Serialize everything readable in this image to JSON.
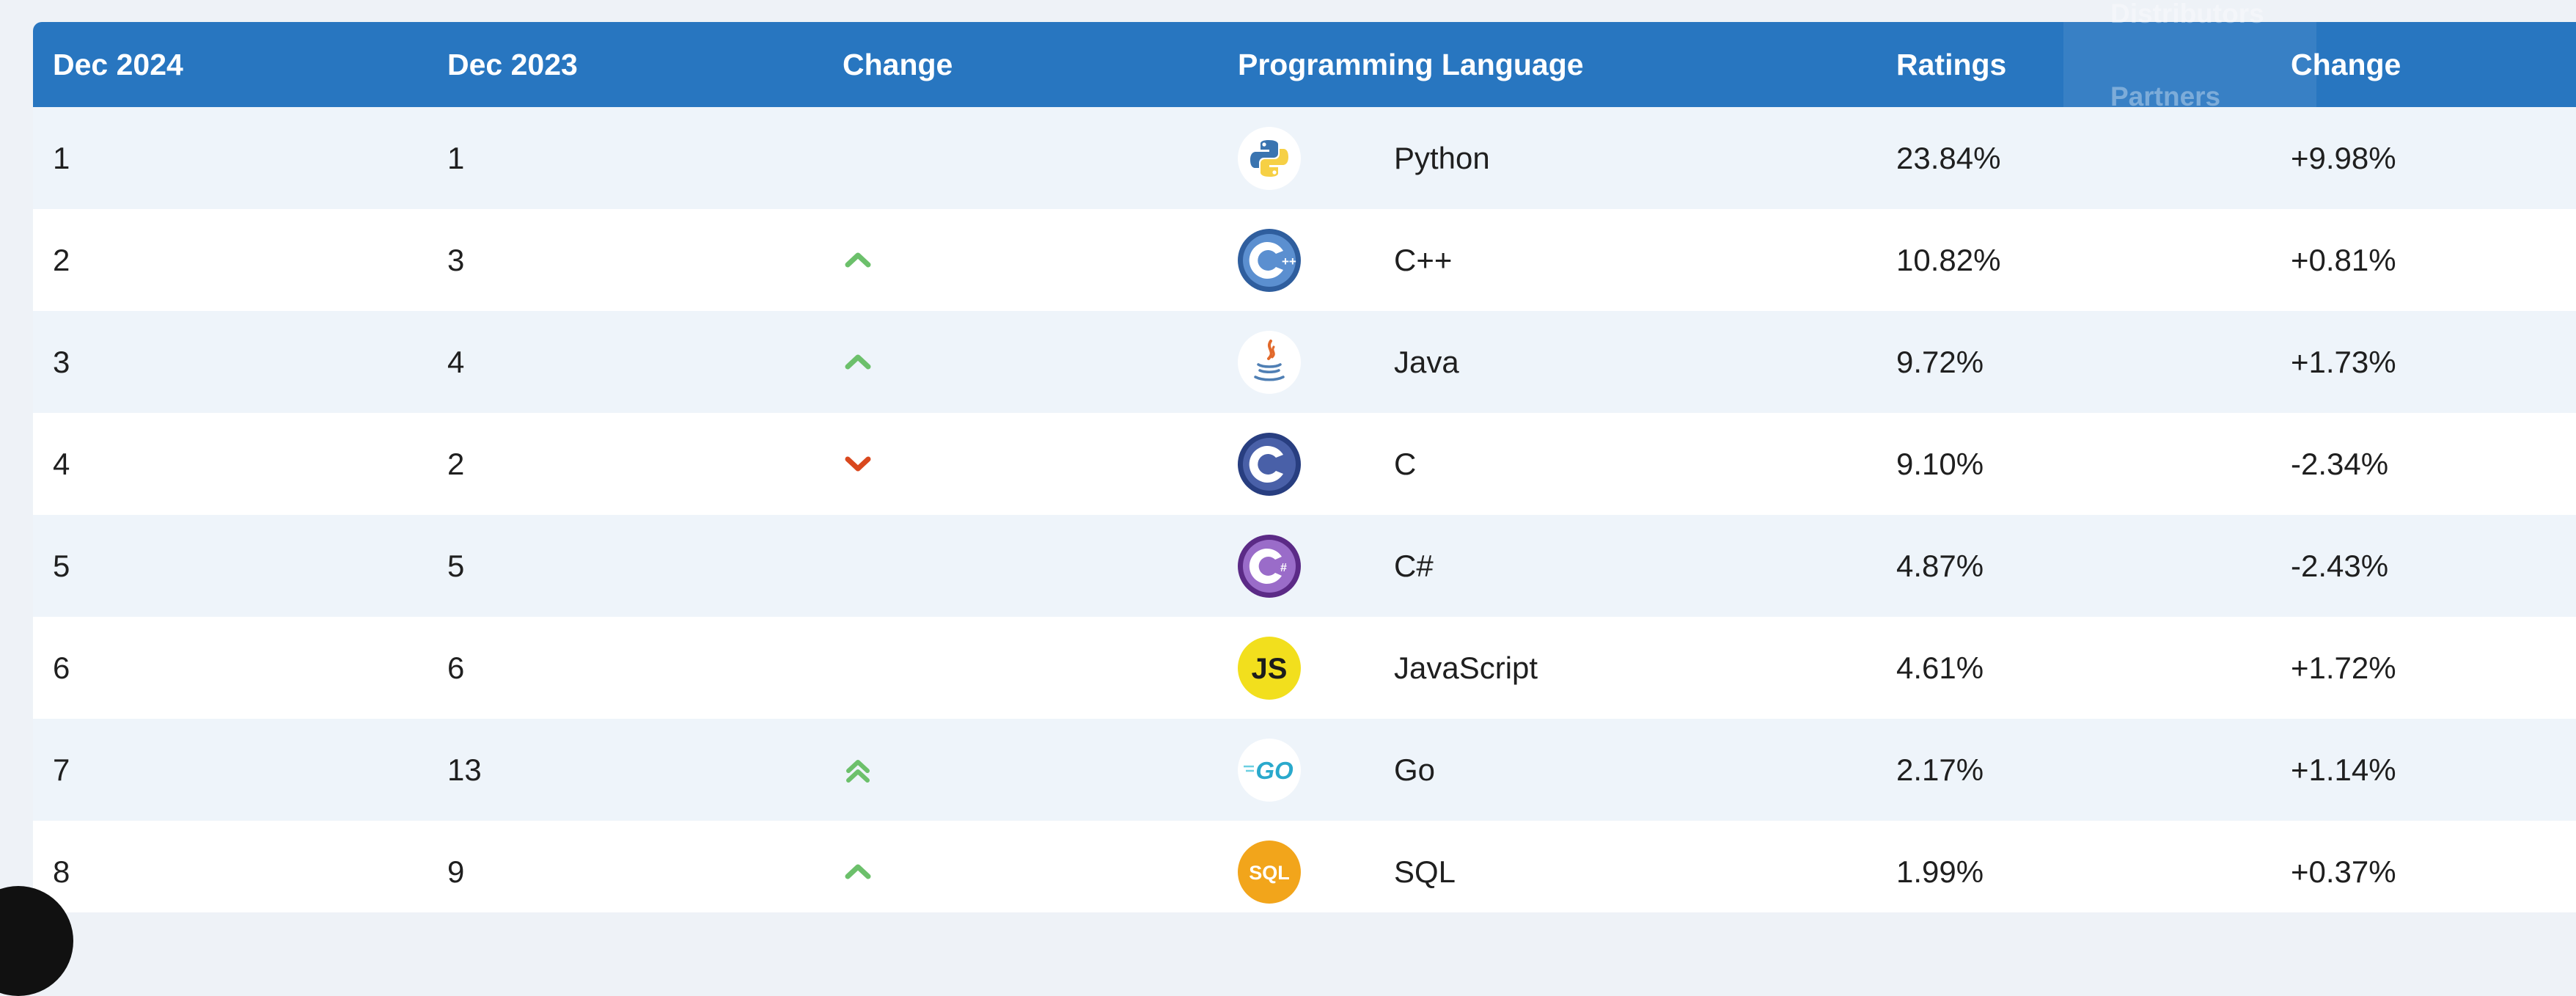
{
  "overlay_menu": {
    "items": [
      "Distributors",
      "Partners"
    ]
  },
  "table": {
    "headers": {
      "rank_now": "Dec 2024",
      "rank_prev": "Dec 2023",
      "change": "Change",
      "language": "Programming Language",
      "ratings": "Ratings",
      "change_pct": "Change"
    },
    "rows": [
      {
        "now": "1",
        "prev": "1",
        "trend": "none",
        "logo": "python-logo-icon",
        "language": "Python",
        "ratings": "23.84%",
        "change": "+9.98%"
      },
      {
        "now": "2",
        "prev": "3",
        "trend": "up",
        "logo": "cpp-logo-icon",
        "language": "C++",
        "ratings": "10.82%",
        "change": "+0.81%"
      },
      {
        "now": "3",
        "prev": "4",
        "trend": "up",
        "logo": "java-logo-icon",
        "language": "Java",
        "ratings": "9.72%",
        "change": "+1.73%"
      },
      {
        "now": "4",
        "prev": "2",
        "trend": "down",
        "logo": "c-logo-icon",
        "language": "C",
        "ratings": "9.10%",
        "change": "-2.34%"
      },
      {
        "now": "5",
        "prev": "5",
        "trend": "none",
        "logo": "csharp-logo-icon",
        "language": "C#",
        "ratings": "4.87%",
        "change": "-2.43%"
      },
      {
        "now": "6",
        "prev": "6",
        "trend": "none",
        "logo": "javascript-logo-icon",
        "language": "JavaScript",
        "ratings": "4.61%",
        "change": "+1.72%"
      },
      {
        "now": "7",
        "prev": "13",
        "trend": "double-up",
        "logo": "go-logo-icon",
        "language": "Go",
        "ratings": "2.17%",
        "change": "+1.14%"
      },
      {
        "now": "8",
        "prev": "9",
        "trend": "up",
        "logo": "sql-logo-icon",
        "language": "SQL",
        "ratings": "1.99%",
        "change": "+0.37%"
      }
    ]
  },
  "colors": {
    "header_bg": "#2876c0",
    "row_alt": "#eef4fa",
    "arrow_up": "#6cc06b",
    "arrow_down": "#d9481e"
  }
}
